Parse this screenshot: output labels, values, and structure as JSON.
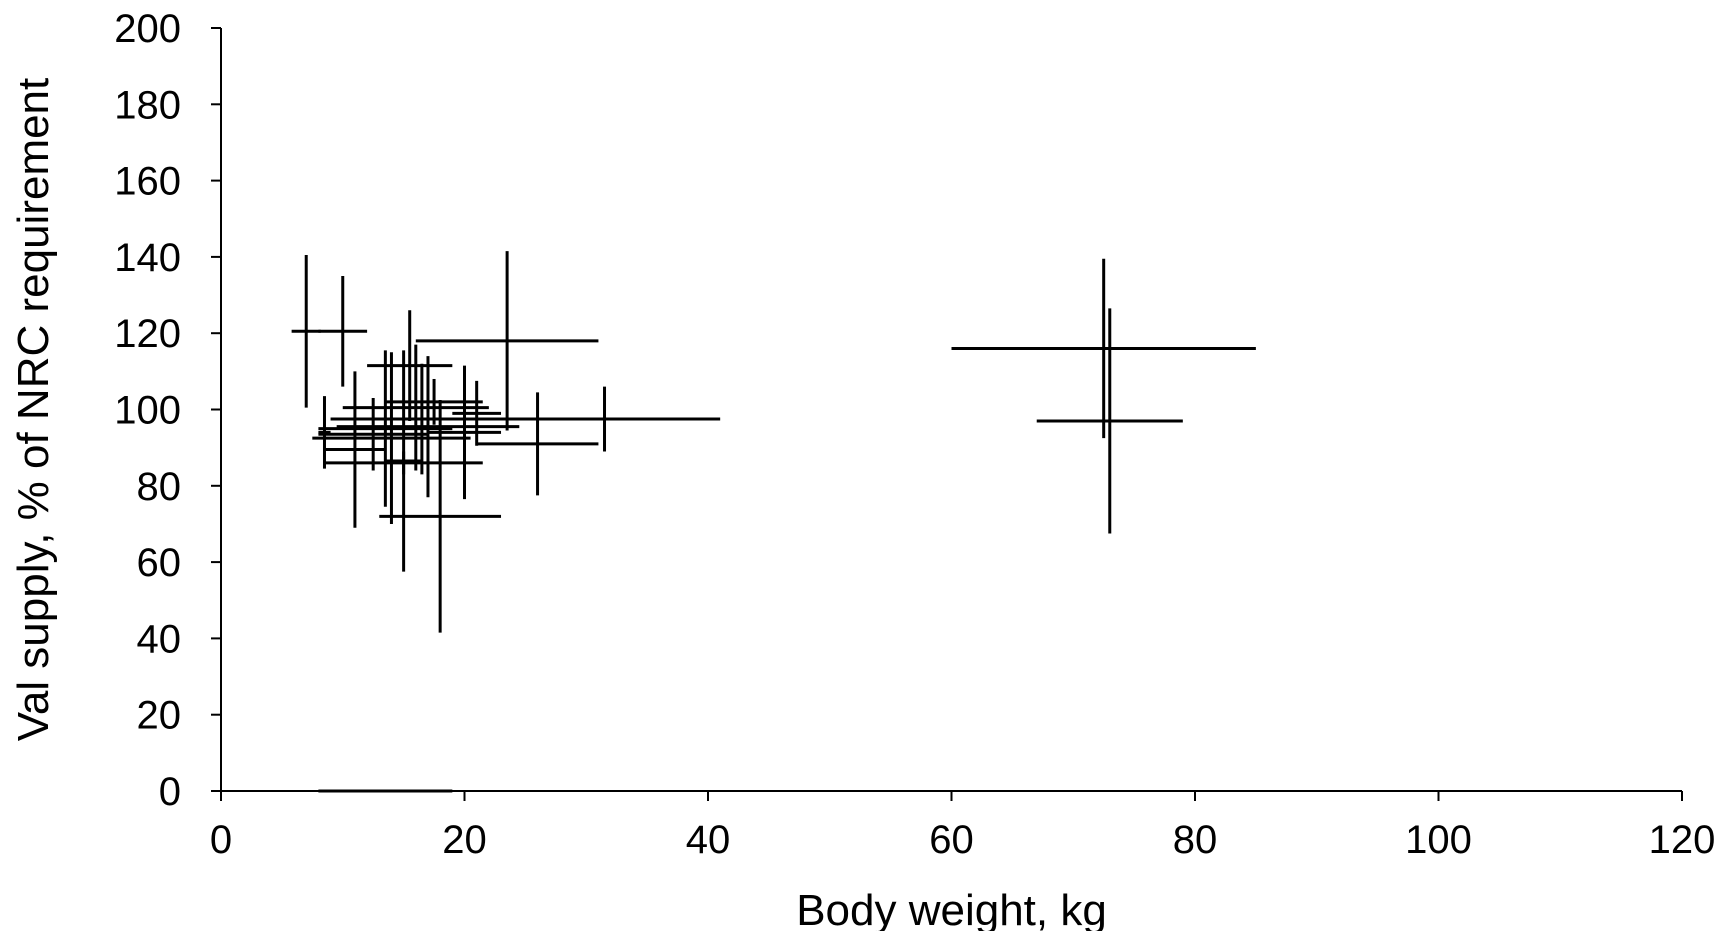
{
  "chart_data": {
    "type": "scatter",
    "xlabel": "Body weight, kg",
    "ylabel": "Val supply, % of NRC requirement",
    "xlim": [
      0,
      120
    ],
    "ylim": [
      0,
      200
    ],
    "xticks": [
      "0",
      "20",
      "40",
      "60",
      "80",
      "100",
      "120"
    ],
    "yticks": [
      "0",
      "20",
      "40",
      "60",
      "80",
      "100",
      "120",
      "140",
      "160",
      "180",
      "200"
    ],
    "grid": false,
    "legend": "none",
    "marker_color": "#000000",
    "points": [
      {
        "x": 7.0,
        "y": 120.5,
        "xerr": 1.2,
        "yerr": 20
      },
      {
        "x": 10.0,
        "y": 120.5,
        "xerr": 2.0,
        "yerr": 14.5
      },
      {
        "x": 23.5,
        "y": 118.0,
        "xerr": 7.5,
        "yerr": 23.5
      },
      {
        "x": 15.5,
        "y": 111.5,
        "xerr": 3.5,
        "yerr": 14.5
      },
      {
        "x": 72.5,
        "y": 116.0,
        "xerr": 12.5,
        "yerr": 23.5
      },
      {
        "x": 73.0,
        "y": 97.0,
        "xerr": 6.0,
        "yerr": 29.5
      },
      {
        "x": 31.5,
        "y": 97.5,
        "xerr": 9.5,
        "yerr": 8.5
      },
      {
        "x": 26.0,
        "y": 91.0,
        "xerr": 5.0,
        "yerr": 13.5
      },
      {
        "x": 11.0,
        "y": 89.5,
        "xerr": 2.5,
        "yerr": 20.5
      },
      {
        "x": 20.0,
        "y": 94.0,
        "xerr": 3.0,
        "yerr": 17.5
      },
      {
        "x": 21.0,
        "y": 99.0,
        "xerr": 2.0,
        "yerr": 8.5
      },
      {
        "x": 15.0,
        "y": 86.5,
        "xerr": 1.5,
        "yerr": 29.0
      },
      {
        "x": 16.0,
        "y": 100.5,
        "xerr": 6.0,
        "yerr": 16.5
      },
      {
        "x": 17.5,
        "y": 102.0,
        "xerr": 4.0,
        "yerr": 6.0
      },
      {
        "x": 16.5,
        "y": 97.5,
        "xerr": 7.5,
        "yerr": 14.5
      },
      {
        "x": 13.5,
        "y": 95.0,
        "xerr": 5.5,
        "yerr": 20.5
      },
      {
        "x": 14.0,
        "y": 92.5,
        "xerr": 6.5,
        "yerr": 22.5
      },
      {
        "x": 17.0,
        "y": 95.5,
        "xerr": 7.5,
        "yerr": 18.5
      },
      {
        "x": 12.5,
        "y": 93.5,
        "xerr": 4.5,
        "yerr": 9.5
      },
      {
        "x": 15.0,
        "y": 86.0,
        "xerr": 6.5,
        "yerr": 3.0
      },
      {
        "x": 8.5,
        "y": 94.0,
        "xerr": 0.5,
        "yerr": 9.5
      },
      {
        "x": 18.0,
        "y": 72.0,
        "xerr": 5.0,
        "yerr": 30.5
      },
      {
        "x": 13.5,
        "y": 0.0,
        "xerr": 5.5,
        "yerr": 0
      }
    ]
  }
}
